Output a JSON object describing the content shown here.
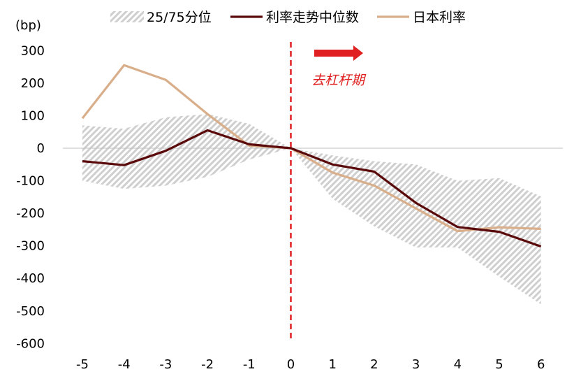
{
  "chart_data": {
    "type": "line",
    "ylabel": "(bp)",
    "ylim": [
      -600,
      300
    ],
    "yticks": [
      300,
      200,
      100,
      0,
      -100,
      -200,
      -300,
      -400,
      -500,
      -600
    ],
    "x": [
      -5,
      -4,
      -3,
      -2,
      -1,
      0,
      1,
      2,
      3,
      4,
      5,
      6
    ],
    "band": {
      "name": "25/75分位",
      "lower": [
        -100,
        -125,
        -115,
        -88,
        -35,
        0,
        -155,
        -240,
        -305,
        -305,
        -395,
        -480
      ],
      "upper": [
        70,
        60,
        95,
        105,
        75,
        0,
        -22,
        -40,
        -50,
        -100,
        -92,
        -148
      ]
    },
    "series": [
      {
        "name": "利率走势中位数",
        "color": "#5a0a0a",
        "values": [
          -40,
          -52,
          -8,
          55,
          12,
          0,
          -50,
          -72,
          -168,
          -242,
          -257,
          -302
        ]
      },
      {
        "name": "日本利率",
        "color": "#d9ae8a",
        "values": [
          92,
          255,
          210,
          105,
          8,
          0,
          -75,
          -115,
          -185,
          -255,
          -243,
          -248
        ]
      }
    ],
    "grid": false,
    "legend_position": "top",
    "annotation": {
      "text": "去杠杆期",
      "x": 0,
      "color": "#e02020"
    }
  }
}
